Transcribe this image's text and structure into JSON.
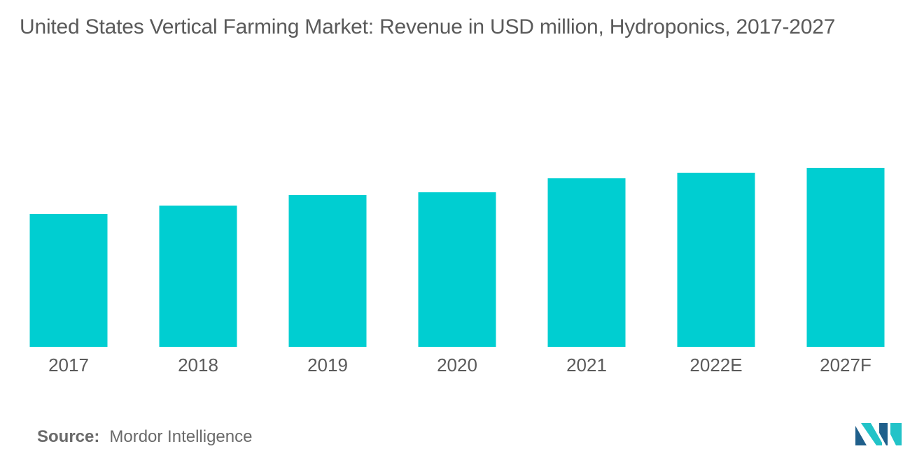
{
  "title": "United States Vertical Farming Market: Revenue in USD million, Hydroponics, 2017-2027",
  "source": {
    "label": "Source:",
    "value": "Mordor Intelligence"
  },
  "colors": {
    "bar": "#00ced1",
    "text": "#5a5a5a",
    "logo_dark": "#1f5f8b",
    "logo_light": "#22c3c8"
  },
  "logo": {
    "icon": "mordor-intelligence-logo-icon"
  },
  "chart_data": {
    "type": "bar",
    "categories": [
      "2017",
      "2018",
      "2019",
      "2020",
      "2021",
      "2022E",
      "2027F"
    ],
    "values": [
      190,
      202,
      217,
      221,
      241,
      249,
      256
    ],
    "title": "United States Vertical Farming Market: Revenue in USD million, Hydroponics, 2017-2027",
    "xlabel": "",
    "ylabel": "",
    "ylim": [
      0,
      256
    ],
    "grid": false,
    "legend": "none"
  }
}
